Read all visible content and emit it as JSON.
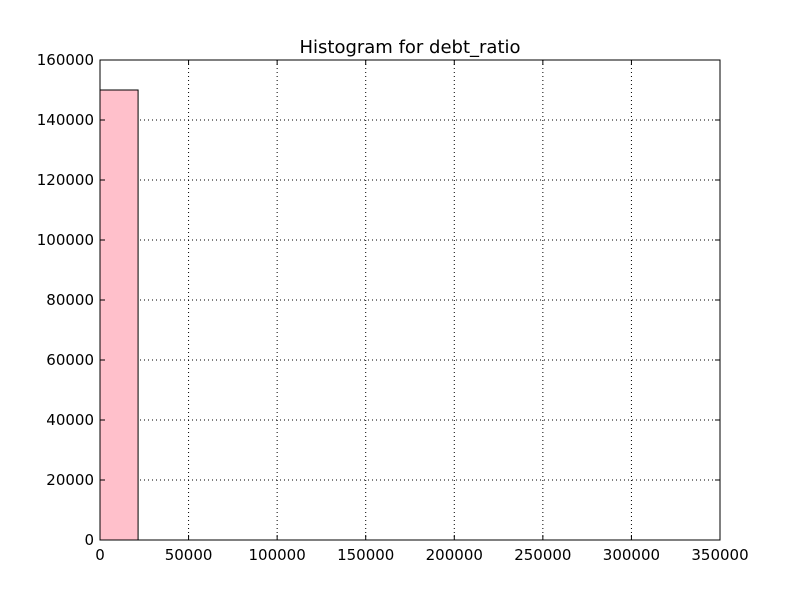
{
  "chart_data": {
    "type": "bar",
    "title": "Histogram for debt_ratio",
    "xlabel": "",
    "ylabel": "",
    "xlim": [
      0,
      350000
    ],
    "ylim": [
      0,
      160000
    ],
    "x_ticks": [
      0,
      50000,
      100000,
      150000,
      200000,
      250000,
      300000,
      350000
    ],
    "y_ticks": [
      0,
      20000,
      40000,
      60000,
      80000,
      100000,
      120000,
      140000,
      160000
    ],
    "grid": true,
    "bar_color": "#ffc0cb",
    "edge_color": "#000000",
    "bins": [
      {
        "x0": 0,
        "x1": 21500,
        "count": 150000
      },
      {
        "x0": 21500,
        "x1": 43000,
        "count": 0
      },
      {
        "x0": 43000,
        "x1": 64500,
        "count": 0
      },
      {
        "x0": 64500,
        "x1": 86000,
        "count": 0
      },
      {
        "x0": 86000,
        "x1": 107500,
        "count": 0
      },
      {
        "x0": 107500,
        "x1": 129000,
        "count": 0
      },
      {
        "x0": 129000,
        "x1": 150500,
        "count": 0
      },
      {
        "x0": 150500,
        "x1": 172000,
        "count": 0
      },
      {
        "x0": 172000,
        "x1": 193500,
        "count": 0
      },
      {
        "x0": 193500,
        "x1": 215000,
        "count": 0
      },
      {
        "x0": 215000,
        "x1": 236500,
        "count": 0
      },
      {
        "x0": 236500,
        "x1": 258000,
        "count": 0
      },
      {
        "x0": 258000,
        "x1": 279500,
        "count": 0
      },
      {
        "x0": 279500,
        "x1": 301000,
        "count": 0
      },
      {
        "x0": 301000,
        "x1": 322500,
        "count": 0
      }
    ]
  }
}
